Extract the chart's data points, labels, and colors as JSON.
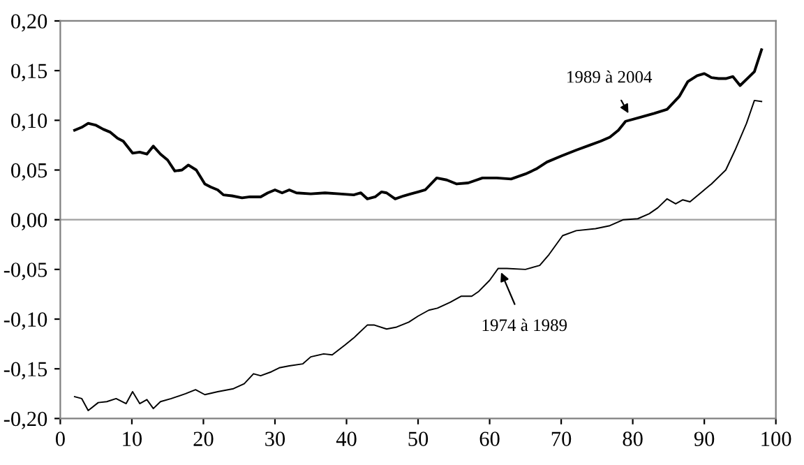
{
  "chart_data": {
    "type": "line",
    "series": [
      {
        "color": "#000000",
        "x": [
          2,
          3,
          3.9,
          5,
          6,
          7,
          8,
          8.8,
          10.1,
          11.1,
          12.1,
          13,
          14,
          15,
          16,
          17,
          17.9,
          19,
          20.2,
          21,
          22,
          22.8,
          24,
          25.4,
          26.5,
          28,
          29,
          30,
          31,
          32,
          33,
          35,
          37,
          39,
          41,
          42,
          42.9,
          44,
          44.9,
          45.6,
          46.8,
          48,
          49,
          50,
          51,
          52.6,
          54,
          55.4,
          57,
          59,
          61,
          63,
          65,
          66.5,
          68,
          70,
          72.1,
          74,
          75.5,
          76.8,
          78,
          79,
          81,
          83,
          84.8,
          86.5,
          87.7,
          89,
          90,
          91,
          92,
          93,
          94,
          95,
          96,
          97,
          98
        ],
        "values": [
          0.09,
          0.093,
          0.097,
          0.095,
          0.091,
          0.088,
          0.082,
          0.079,
          0.067,
          0.068,
          0.066,
          0.074,
          0.066,
          0.06,
          0.049,
          0.05,
          0.055,
          0.05,
          0.036,
          0.033,
          0.03,
          0.025,
          0.024,
          0.022,
          0.023,
          0.023,
          0.027,
          0.03,
          0.027,
          0.03,
          0.027,
          0.026,
          0.027,
          0.026,
          0.025,
          0.027,
          0.021,
          0.023,
          0.028,
          0.027,
          0.021,
          0.024,
          0.026,
          0.028,
          0.03,
          0.042,
          0.04,
          0.036,
          0.037,
          0.042,
          0.042,
          0.041,
          0.046,
          0.051,
          0.058,
          0.064,
          0.07,
          0.075,
          0.079,
          0.083,
          0.09,
          0.099,
          0.103,
          0.107,
          0.111,
          0.124,
          0.139,
          0.145,
          0.147,
          0.143,
          0.142,
          0.142,
          0.144,
          0.135,
          0.142,
          0.149,
          0.171
        ]
      },
      {
        "color": "#000000",
        "x": [
          2,
          3,
          3.9,
          5.3,
          6.5,
          7.8,
          9.2,
          10.1,
          11.1,
          12.1,
          13,
          14,
          15.5,
          17.5,
          18.9,
          20.2,
          22,
          24.2,
          25.7,
          27,
          28,
          29.5,
          30.6,
          32,
          33.9,
          35,
          36.8,
          38,
          39.8,
          41,
          42.9,
          43.9,
          45.6,
          47,
          48.7,
          50,
          51.5,
          52.7,
          54.5,
          56,
          57.5,
          58.5,
          60,
          61.2,
          62.4,
          65,
          67,
          68.3,
          70.2,
          72.1,
          74.8,
          76.8,
          78.7,
          80.7,
          82.3,
          83.5,
          84.8,
          86,
          87,
          88,
          89.5,
          91,
          93,
          94.3,
          95.9,
          97,
          98
        ],
        "values": [
          -0.178,
          -0.18,
          -0.192,
          -0.184,
          -0.183,
          -0.18,
          -0.185,
          -0.173,
          -0.185,
          -0.181,
          -0.19,
          -0.183,
          -0.18,
          -0.175,
          -0.171,
          -0.176,
          -0.173,
          -0.17,
          -0.165,
          -0.155,
          -0.157,
          -0.153,
          -0.149,
          -0.147,
          -0.145,
          -0.138,
          -0.135,
          -0.136,
          -0.126,
          -0.119,
          -0.106,
          -0.106,
          -0.11,
          -0.108,
          -0.103,
          -0.097,
          -0.091,
          -0.089,
          -0.083,
          -0.077,
          -0.077,
          -0.072,
          -0.061,
          -0.049,
          -0.049,
          -0.05,
          -0.046,
          -0.035,
          -0.016,
          -0.011,
          -0.009,
          -0.006,
          0.0,
          0.001,
          0.006,
          0.012,
          0.021,
          0.016,
          0.02,
          0.018,
          0.027,
          0.036,
          0.05,
          0.07,
          0.097,
          0.12,
          0.119
        ]
      }
    ],
    "annotations": [
      {
        "text": "1989 à 2004",
        "x": 79.4,
        "y": 0.107
      },
      {
        "text": "1974 à 1989",
        "x": 61.6,
        "y": -0.053
      }
    ],
    "ref_lines": [
      {
        "axis": "y",
        "value": 0,
        "color": "#a0a0a0"
      }
    ],
    "xlim": [
      0,
      100
    ],
    "xticks": [
      0,
      10,
      20,
      30,
      40,
      50,
      60,
      70,
      80,
      90,
      100
    ],
    "ylim": [
      -0.2,
      0.2
    ],
    "yticks": [
      {
        "value": -0.2,
        "label": "-0,20"
      },
      {
        "value": -0.15,
        "label": "-0,15"
      },
      {
        "value": -0.1,
        "label": "-0,10"
      },
      {
        "value": -0.05,
        "label": "-0,05"
      },
      {
        "value": 0,
        "label": "0,00"
      },
      {
        "value": 0.05,
        "label": "0,05"
      },
      {
        "value": 0.1,
        "label": "0,10"
      },
      {
        "value": 0.15,
        "label": "0,15"
      },
      {
        "value": 0.2,
        "label": "0,20"
      }
    ],
    "grid": false,
    "legend": false
  }
}
